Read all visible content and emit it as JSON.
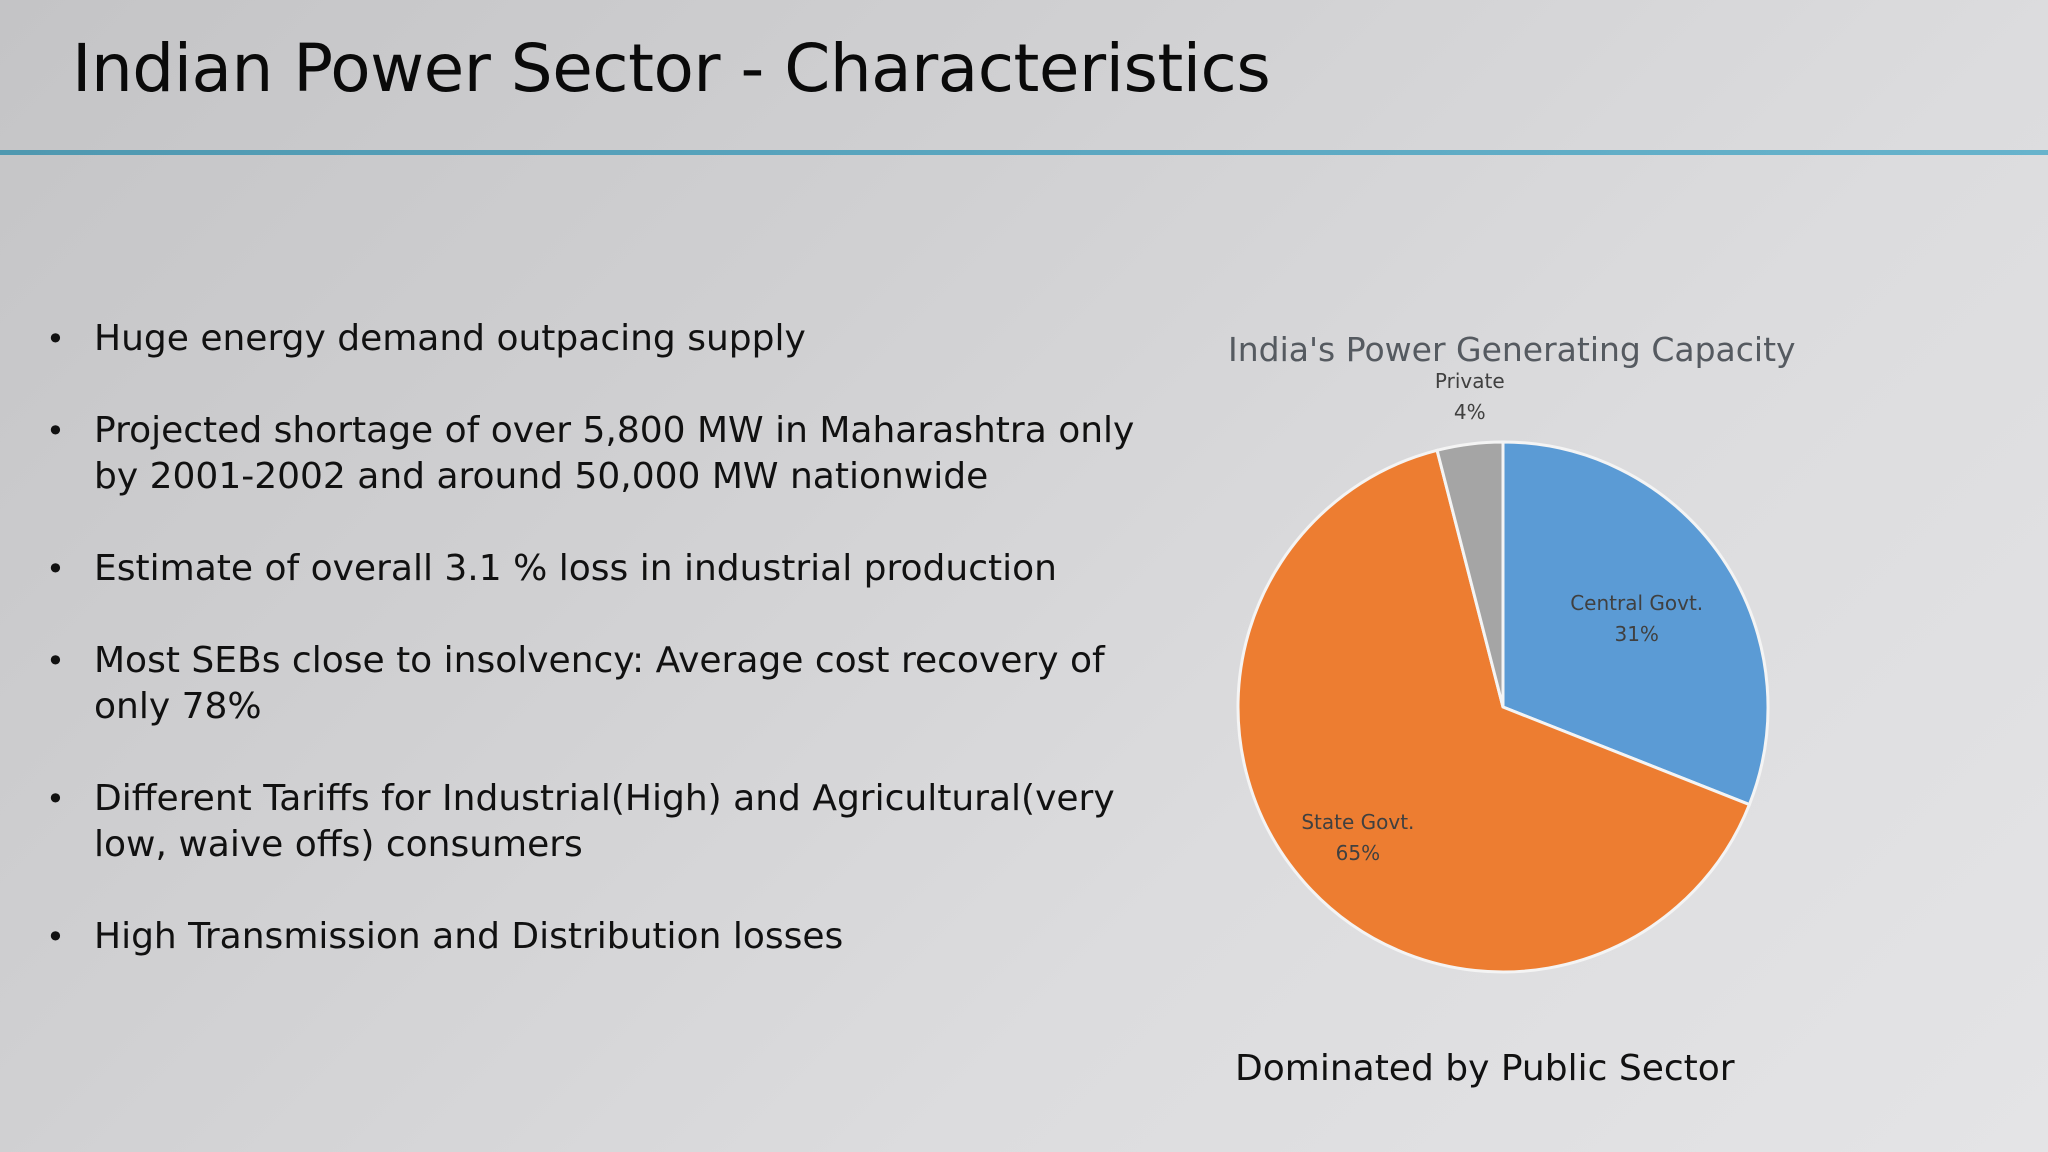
{
  "slide": {
    "title": "Indian Power Sector - Characteristics",
    "bullets": [
      "Huge energy demand outpacing supply",
      "Projected shortage of over 5,800 MW in Maharashtra only by 2001-2002 and around 50,000 MW nationwide",
      "Estimate of overall 3.1 % loss in industrial production",
      "Most SEBs close to insolvency: Average cost recovery of only 78%",
      "Different Tariffs for Industrial(High) and Agricultural(very low, waive offs) consumers",
      "High Transmission and Distribution losses"
    ],
    "bullet_symbol": "•",
    "caption": "Dominated by Public Sector",
    "accent_color": "#5aa6c0"
  },
  "chart_data": {
    "type": "pie",
    "title": "India's Power Generating Capacity",
    "slices": [
      {
        "label": "Central Govt.",
        "value": 31,
        "value_label": "31%",
        "color": "#5b9bd5"
      },
      {
        "label": "State Govt.",
        "value": 65,
        "value_label": "65%",
        "color": "#ed7d31"
      },
      {
        "label": "Private",
        "value": 4,
        "value_label": "4%",
        "color": "#a5a5a5"
      }
    ],
    "start": "12 o'clock",
    "direction": "clockwise",
    "legend": "none",
    "data_labels": "category and percentage"
  }
}
